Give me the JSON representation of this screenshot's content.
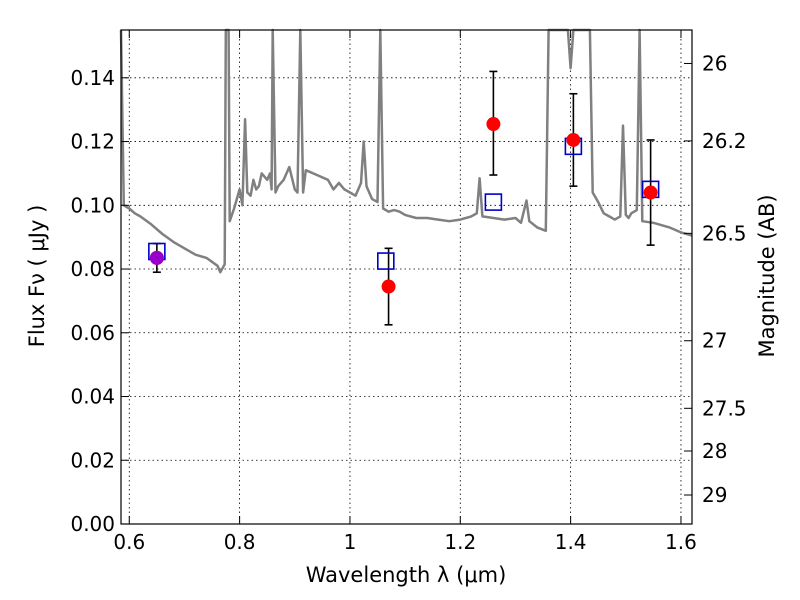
{
  "chart_data": {
    "type": "scatter",
    "xlabel": "Wavelength  λ (μm)",
    "ylabel": "Flux  Fν  ( μJy )",
    "y2label": "Magnitude (AB)",
    "xlim": [
      0.585,
      1.62
    ],
    "ylim": [
      0.0,
      0.155
    ],
    "grid": true,
    "x_ticks": [
      {
        "value": 0.6,
        "label": "0.6"
      },
      {
        "value": 0.8,
        "label": "0.8"
      },
      {
        "value": 1.0,
        "label": "1"
      },
      {
        "value": 1.2,
        "label": "1.2"
      },
      {
        "value": 1.4,
        "label": "1.4"
      },
      {
        "value": 1.6,
        "label": "1.6"
      }
    ],
    "y_ticks": [
      {
        "value": 0.0,
        "label": "0.00"
      },
      {
        "value": 0.02,
        "label": "0.02"
      },
      {
        "value": 0.04,
        "label": "0.04"
      },
      {
        "value": 0.06,
        "label": "0.06"
      },
      {
        "value": 0.08,
        "label": "0.08"
      },
      {
        "value": 0.1,
        "label": "0.10"
      },
      {
        "value": 0.12,
        "label": "0.12"
      },
      {
        "value": 0.14,
        "label": "0.14"
      }
    ],
    "y2_ticks": [
      {
        "flux": 0.1445,
        "label": "26"
      },
      {
        "flux": 0.1202,
        "label": "26.2"
      },
      {
        "flux": 0.0912,
        "label": "26.5"
      },
      {
        "flux": 0.0575,
        "label": "27"
      },
      {
        "flux": 0.0363,
        "label": "27.5"
      },
      {
        "flux": 0.0229,
        "label": "28"
      },
      {
        "flux": 0.0091,
        "label": "29"
      }
    ],
    "series": [
      {
        "kind": "line",
        "color": "#808080",
        "points": [
          [
            0.585,
            0.155
          ],
          [
            0.59,
            0.1
          ],
          [
            0.6,
            0.099
          ],
          [
            0.61,
            0.0975
          ],
          [
            0.62,
            0.0965
          ],
          [
            0.64,
            0.094
          ],
          [
            0.66,
            0.091
          ],
          [
            0.68,
            0.0885
          ],
          [
            0.7,
            0.0865
          ],
          [
            0.72,
            0.0845
          ],
          [
            0.74,
            0.0835
          ],
          [
            0.76,
            0.081
          ],
          [
            0.765,
            0.079
          ],
          [
            0.773,
            0.0815
          ],
          [
            0.775,
            0.155
          ],
          [
            0.78,
            0.155
          ],
          [
            0.782,
            0.095
          ],
          [
            0.79,
            0.099
          ],
          [
            0.8,
            0.105
          ],
          [
            0.805,
            0.1
          ],
          [
            0.81,
            0.127
          ],
          [
            0.814,
            0.104
          ],
          [
            0.82,
            0.103
          ],
          [
            0.825,
            0.108
          ],
          [
            0.83,
            0.105
          ],
          [
            0.835,
            0.106
          ],
          [
            0.84,
            0.11
          ],
          [
            0.85,
            0.108
          ],
          [
            0.855,
            0.11
          ],
          [
            0.858,
            0.105
          ],
          [
            0.86,
            0.155
          ],
          [
            0.865,
            0.104
          ],
          [
            0.87,
            0.106
          ],
          [
            0.88,
            0.108
          ],
          [
            0.89,
            0.112
          ],
          [
            0.9,
            0.105
          ],
          [
            0.905,
            0.104
          ],
          [
            0.91,
            0.155
          ],
          [
            0.915,
            0.104
          ],
          [
            0.92,
            0.111
          ],
          [
            0.94,
            0.1095
          ],
          [
            0.96,
            0.108
          ],
          [
            0.97,
            0.105
          ],
          [
            0.98,
            0.107
          ],
          [
            0.99,
            0.105
          ],
          [
            1.0,
            0.104
          ],
          [
            1.01,
            0.103
          ],
          [
            1.02,
            0.107
          ],
          [
            1.025,
            0.12
          ],
          [
            1.03,
            0.106
          ],
          [
            1.04,
            0.102
          ],
          [
            1.05,
            0.101
          ],
          [
            1.055,
            0.155
          ],
          [
            1.06,
            0.099
          ],
          [
            1.07,
            0.098
          ],
          [
            1.08,
            0.0985
          ],
          [
            1.09,
            0.098
          ],
          [
            1.1,
            0.097
          ],
          [
            1.12,
            0.096
          ],
          [
            1.14,
            0.096
          ],
          [
            1.16,
            0.0955
          ],
          [
            1.18,
            0.095
          ],
          [
            1.2,
            0.0955
          ],
          [
            1.22,
            0.0965
          ],
          [
            1.23,
            0.0975
          ],
          [
            1.235,
            0.1085
          ],
          [
            1.24,
            0.0965
          ],
          [
            1.26,
            0.096
          ],
          [
            1.28,
            0.0955
          ],
          [
            1.3,
            0.096
          ],
          [
            1.31,
            0.0945
          ],
          [
            1.32,
            0.1015
          ],
          [
            1.325,
            0.095
          ],
          [
            1.34,
            0.093
          ],
          [
            1.355,
            0.092
          ],
          [
            1.36,
            0.155
          ],
          [
            1.365,
            0.155
          ],
          [
            1.37,
            0.155
          ],
          [
            1.38,
            0.155
          ],
          [
            1.395,
            0.155
          ],
          [
            1.4,
            0.143
          ],
          [
            1.405,
            0.155
          ],
          [
            1.42,
            0.155
          ],
          [
            1.43,
            0.155
          ],
          [
            1.435,
            0.155
          ],
          [
            1.44,
            0.104
          ],
          [
            1.45,
            0.101
          ],
          [
            1.46,
            0.0975
          ],
          [
            1.47,
            0.0965
          ],
          [
            1.48,
            0.0955
          ],
          [
            1.49,
            0.0965
          ],
          [
            1.495,
            0.125
          ],
          [
            1.5,
            0.097
          ],
          [
            1.505,
            0.096
          ],
          [
            1.51,
            0.0975
          ],
          [
            1.52,
            0.0985
          ],
          [
            1.525,
            0.155
          ],
          [
            1.53,
            0.095
          ],
          [
            1.55,
            0.0945
          ],
          [
            1.58,
            0.093
          ],
          [
            1.6,
            0.0915
          ],
          [
            1.62,
            0.0905
          ]
        ]
      },
      {
        "kind": "open-square",
        "color": "#0000cc",
        "points": [
          [
            0.65,
            0.0855
          ],
          [
            1.065,
            0.0825
          ],
          [
            1.26,
            0.101
          ],
          [
            1.405,
            0.1185
          ],
          [
            1.545,
            0.105
          ]
        ]
      },
      {
        "kind": "filled-circle-errorbar",
        "color": "#ff0000",
        "points": [
          {
            "x": 0.65,
            "y": 0.0835,
            "lo": 0.079,
            "hi": 0.088
          },
          {
            "x": 1.07,
            "y": 0.0745,
            "lo": 0.0625,
            "hi": 0.0865
          },
          {
            "x": 1.26,
            "y": 0.1255,
            "lo": 0.1095,
            "hi": 0.142
          },
          {
            "x": 1.405,
            "y": 0.1205,
            "lo": 0.106,
            "hi": 0.135
          },
          {
            "x": 1.545,
            "y": 0.104,
            "lo": 0.0875,
            "hi": 0.1205
          }
        ]
      },
      {
        "kind": "filled-circle",
        "color": "#9900cc",
        "points": [
          [
            0.65,
            0.0835
          ]
        ]
      }
    ]
  }
}
